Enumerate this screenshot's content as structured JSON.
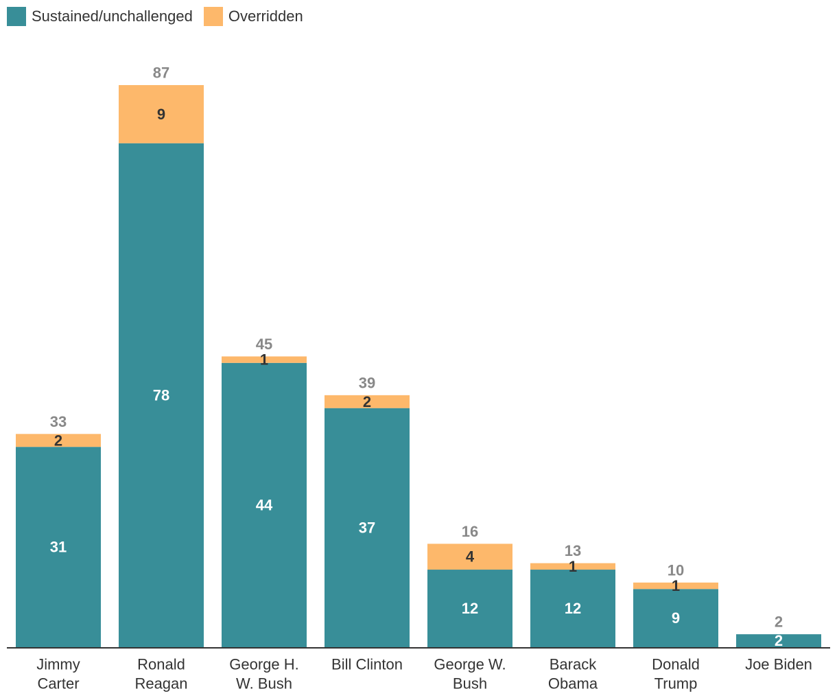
{
  "chart_data": {
    "type": "bar",
    "stacked": true,
    "categories": [
      [
        "Jimmy",
        "Carter"
      ],
      [
        "Ronald",
        "Reagan"
      ],
      [
        "George H.",
        "W. Bush"
      ],
      [
        "Bill Clinton"
      ],
      [
        "George W.",
        "Bush"
      ],
      [
        "Barack",
        "Obama"
      ],
      [
        "Donald",
        "Trump"
      ],
      [
        "Joe Biden"
      ]
    ],
    "series": [
      {
        "name": "Sustained/unchallenged",
        "color": "#388e98",
        "label_color": "#ffffff",
        "values": [
          31,
          78,
          44,
          37,
          12,
          12,
          9,
          2
        ]
      },
      {
        "name": "Overridden",
        "color": "#fdb86b",
        "label_color": "#333333",
        "values": [
          2,
          9,
          1,
          2,
          4,
          1,
          1,
          0
        ]
      }
    ],
    "totals": [
      33,
      87,
      45,
      39,
      16,
      13,
      10,
      2
    ],
    "total_label_color": "#888888",
    "legend_position": "top-left",
    "grid": false
  }
}
